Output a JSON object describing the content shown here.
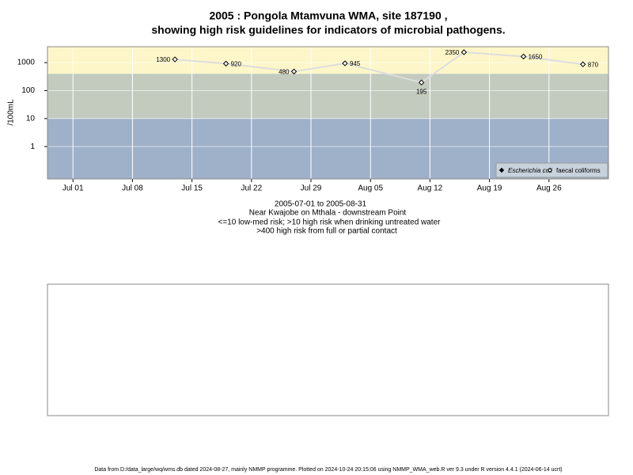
{
  "chart_data": {
    "type": "line",
    "title": [
      "2005 : Pongola Mtamvuna WMA, site 187190 ,",
      "showing high risk guidelines for indicators of microbial pathogens."
    ],
    "ylabel": "/100mL",
    "notes": [
      "2005-07-01 to 2005-08-31",
      "Near Kwajobe on Mthala - downstream Point",
      "<=10 low-med risk; >10 high risk when drinking untreated water",
      ">400 high risk from full or partial contact"
    ],
    "footer": "Data from D:/data_large/wq/wms.db dated 2024-08-27, mainly NMMP programme. Plotted on 2024-10-24 20:15:06 using NMMP_WMA_web.R ver 9.3 under R version 4.4.1 (2024-06-14 ucrt)",
    "x": [
      "2005-07-13",
      "2005-07-19",
      "2005-07-27",
      "2005-08-02",
      "2005-08-11",
      "2005-08-16",
      "2005-08-23",
      "2005-08-30"
    ],
    "series": [
      {
        "name": "Escherichia coli",
        "color": "#000000",
        "values": [
          null,
          null,
          null,
          null,
          null,
          null,
          null,
          null
        ]
      },
      {
        "name": "faecal coliforms",
        "color": "#000000",
        "line_color": "#dddddd",
        "values": [
          1300,
          920,
          480,
          945,
          195,
          2350,
          1650,
          870
        ]
      }
    ],
    "xlim": [
      "2005-06-28",
      "2005-09-02"
    ],
    "xticks": [
      {
        "value": "2005-07-01",
        "label": "Jul 01"
      },
      {
        "value": "2005-07-08",
        "label": "Jul 08"
      },
      {
        "value": "2005-07-15",
        "label": "Jul 15"
      },
      {
        "value": "2005-07-22",
        "label": "Jul 22"
      },
      {
        "value": "2005-07-29",
        "label": "Jul 29"
      },
      {
        "value": "2005-08-05",
        "label": "Aug 05"
      },
      {
        "value": "2005-08-12",
        "label": "Aug 12"
      },
      {
        "value": "2005-08-19",
        "label": "Aug 19"
      },
      {
        "value": "2005-08-26",
        "label": "Aug 26"
      }
    ],
    "ylim": [
      0.07,
      3700
    ],
    "yticks": [
      1,
      10,
      100,
      1000
    ],
    "log_y": true,
    "grid": true,
    "bands": [
      {
        "from": 0.07,
        "to": 10,
        "color": "#9fb1c9"
      },
      {
        "from": 10,
        "to": 400,
        "color": "#c3cbbf"
      },
      {
        "from": 400,
        "to": 3700,
        "color": "#fdf6c9"
      }
    ],
    "legend": "lower right"
  }
}
